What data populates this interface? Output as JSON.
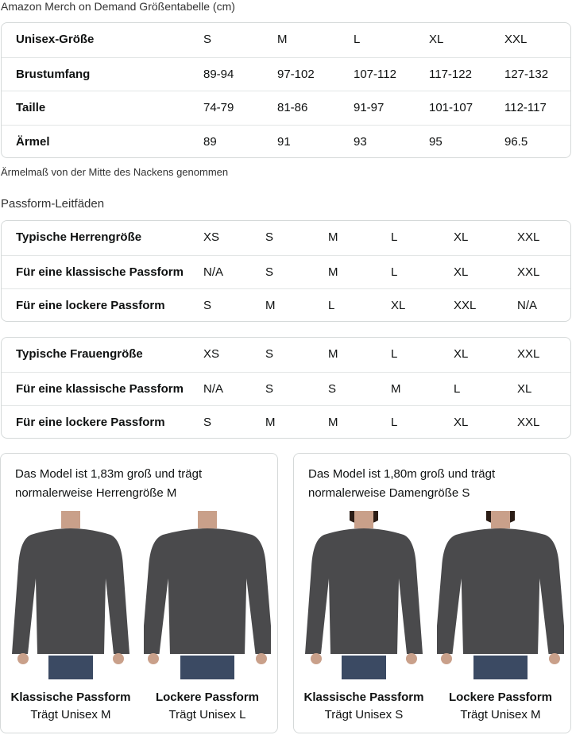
{
  "title": "Amazon Merch on Demand Größentabelle (cm)",
  "size_table": {
    "columns": [
      "Unisex-Größe",
      "S",
      "M",
      "L",
      "XL",
      "XXL"
    ],
    "rows": [
      [
        "Brustumfang",
        "89-94",
        "97-102",
        "107-112",
        "117-122",
        "127-132"
      ],
      [
        "Taille",
        "74-79",
        "81-86",
        "91-97",
        "101-107",
        "112-117"
      ],
      [
        "Ärmel",
        "89",
        "91",
        "93",
        "95",
        "96.5"
      ]
    ]
  },
  "note": "Ärmelmaß von der Mitte des Nackens genommen",
  "fit_title": "Passform-Leitfäden",
  "men_table": [
    [
      "Typische Herrengröße",
      "XS",
      "S",
      "M",
      "L",
      "XL",
      "XXL"
    ],
    [
      "Für eine klassische Passform",
      "N/A",
      "S",
      "M",
      "L",
      "XL",
      "XXL"
    ],
    [
      "Für eine lockere Passform",
      "S",
      "M",
      "L",
      "XL",
      "XXL",
      "N/A"
    ]
  ],
  "women_table": [
    [
      "Typische Frauengröße",
      "XS",
      "S",
      "M",
      "L",
      "XL",
      "XXL"
    ],
    [
      "Für eine klassische Passform",
      "N/A",
      "S",
      "S",
      "M",
      "L",
      "XL"
    ],
    [
      "Für eine lockere Passform",
      "S",
      "M",
      "M",
      "L",
      "XL",
      "XXL"
    ]
  ],
  "cards": [
    {
      "desc": "Das Model ist 1,83m groß und trägt normalerweise Herrengröße M",
      "figures": [
        {
          "fit": "Klassische Passform",
          "wears": "Trägt Unisex M"
        },
        {
          "fit": "Lockere Passform",
          "wears": "Trägt Unisex L"
        }
      ]
    },
    {
      "desc": "Das Model ist 1,80m groß und trägt normalerweise Damengröße S",
      "figures": [
        {
          "fit": "Klassische Passform",
          "wears": "Trägt Unisex S"
        },
        {
          "fit": "Lockere Passform",
          "wears": "Trägt Unisex M"
        }
      ]
    }
  ],
  "colors": {
    "sweatshirt": "#4a4a4c",
    "jeans": "#3b4a63",
    "skin": "#c9a08a",
    "border": "#d5d9d9"
  }
}
